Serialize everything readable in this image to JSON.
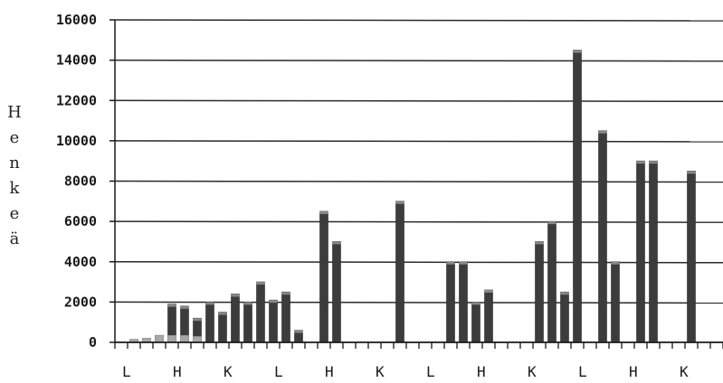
{
  "chart_data": {
    "type": "bar",
    "ylabel": "Henkeä",
    "ylim": [
      0,
      16000
    ],
    "yticks": [
      0,
      2000,
      4000,
      6000,
      8000,
      10000,
      12000,
      14000,
      16000
    ],
    "ytick_labels": [
      "0",
      "2000",
      "4000",
      "6000",
      "8000",
      "10000",
      "12000",
      "14000",
      "16000"
    ],
    "grid": true,
    "x_category_labels": [
      "L",
      "H",
      "K",
      "L",
      "H",
      "K",
      "L",
      "H",
      "K",
      "L",
      "H",
      "K"
    ],
    "n_slots": 48,
    "colors": {
      "bar": "#3c3c3c",
      "bar_light": "#a8a8a8",
      "grid": "#2a2a2a",
      "axis": "#1a1a1a"
    },
    "values": [
      0,
      150,
      200,
      350,
      1900,
      1800,
      1200,
      2000,
      1500,
      2400,
      2000,
      3000,
      2100,
      2500,
      600,
      0,
      6500,
      5000,
      0,
      0,
      0,
      0,
      7000,
      0,
      0,
      0,
      4000,
      4000,
      2000,
      2600,
      0,
      0,
      0,
      5000,
      6000,
      2500,
      14500,
      0,
      10500,
      4000,
      0,
      9000,
      9000,
      0,
      0,
      8500,
      0,
      0
    ],
    "light_overlay": [
      0,
      150,
      200,
      350,
      350,
      350,
      300,
      0,
      0,
      0,
      0,
      0,
      0,
      0,
      0,
      0,
      0,
      0,
      0,
      0,
      0,
      0,
      0,
      0,
      0,
      0,
      0,
      0,
      0,
      0,
      0,
      0,
      0,
      0,
      0,
      0,
      0,
      0,
      0,
      0,
      0,
      0,
      0,
      0,
      0,
      0,
      0,
      0
    ]
  }
}
